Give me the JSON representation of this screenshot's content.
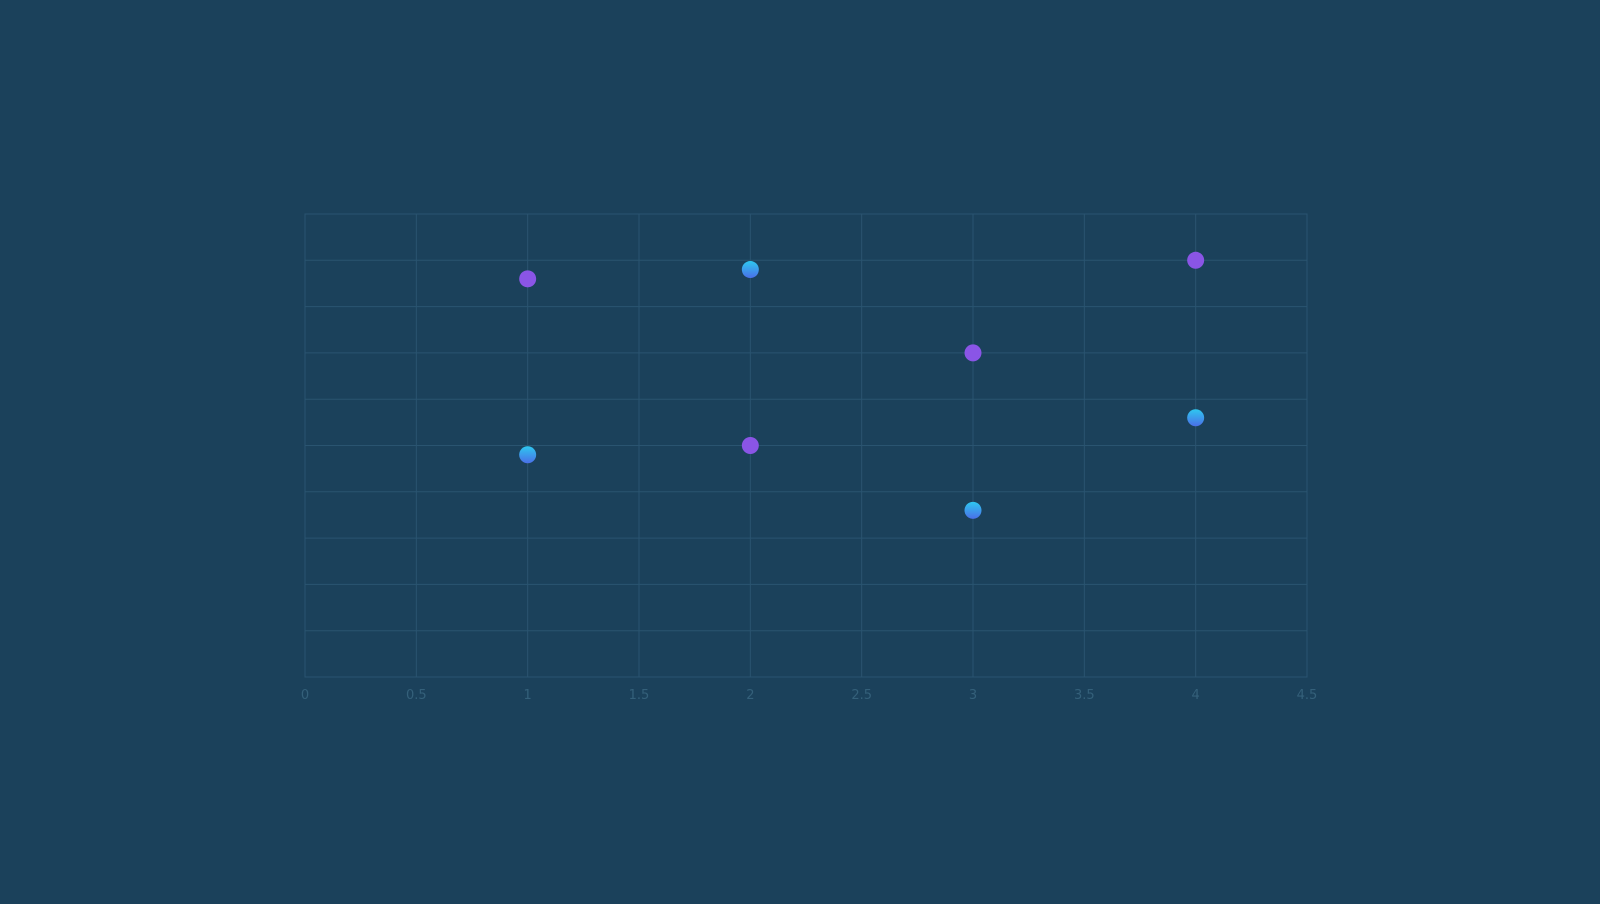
{
  "colors": {
    "background": "#1b415b",
    "grid": "#2a5470",
    "tick_text": "#34607a",
    "series_a_top": "#2ec8f0",
    "series_a_bottom": "#4a6fe8",
    "series_b": "#8a55e6"
  },
  "chart_data": {
    "type": "scatter",
    "title": "",
    "xlabel": "",
    "ylabel": "",
    "xlim": [
      0,
      4.5
    ],
    "ylim": [
      0,
      10
    ],
    "x_ticks": [
      "0",
      "0.5",
      "1",
      "1.5",
      "2",
      "2.5",
      "3",
      "3.5",
      "4",
      "4.5"
    ],
    "y_grid_count": 10,
    "grid": true,
    "legend": "none",
    "series": [
      {
        "color": "#2ec8f0",
        "points": [
          {
            "x": 1,
            "y": 4.8
          },
          {
            "x": 2,
            "y": 8.8
          },
          {
            "x": 3,
            "y": 3.6
          },
          {
            "x": 4,
            "y": 5.6
          }
        ]
      },
      {
        "color": "#8a55e6",
        "points": [
          {
            "x": 1,
            "y": 8.6
          },
          {
            "x": 2,
            "y": 5.0
          },
          {
            "x": 3,
            "y": 7.0
          },
          {
            "x": 4,
            "y": 9.0
          }
        ]
      }
    ]
  }
}
